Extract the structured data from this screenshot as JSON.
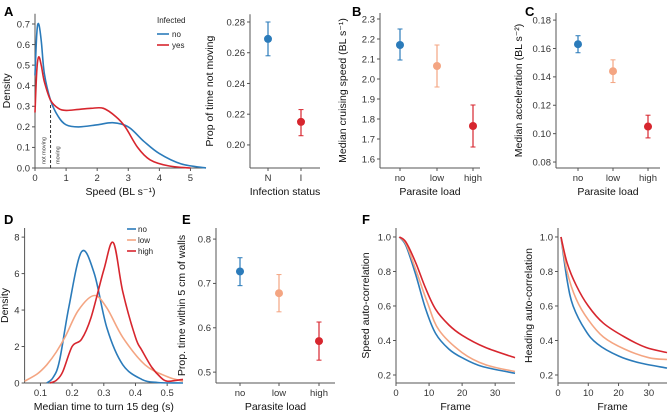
{
  "panel_labels": [
    "A",
    "B",
    "C",
    "D",
    "E",
    "F"
  ],
  "chart_data": [
    {
      "panel": "A",
      "type": "line",
      "kind": "density",
      "xlabel": "Speed (BL s⁻¹)",
      "ylabel": "Density",
      "xlim": [
        0,
        5.5
      ],
      "ylim": [
        0,
        0.75
      ],
      "xticks": [
        "0",
        "1",
        "2",
        "3",
        "4",
        "5"
      ],
      "yticks": [
        "0.0",
        "0.1",
        "0.2",
        "0.3",
        "0.4",
        "0.5",
        "0.6",
        "0.7"
      ],
      "legend": {
        "title": "Infected",
        "position": "top-right"
      },
      "threshold": {
        "x": 0.5,
        "left_label": "not moving",
        "right_label": "moving"
      },
      "series": [
        {
          "name": "no",
          "color": "#2b7bba",
          "x": [
            0,
            0.06,
            0.12,
            0.2,
            0.3,
            0.5,
            0.75,
            1,
            1.4,
            2,
            2.5,
            3,
            3.5,
            4,
            4.7,
            5.5
          ],
          "y": [
            0.45,
            0.66,
            0.7,
            0.62,
            0.46,
            0.33,
            0.25,
            0.21,
            0.2,
            0.21,
            0.22,
            0.2,
            0.13,
            0.07,
            0.02,
            0.0
          ]
        },
        {
          "name": "yes",
          "color": "#d7262e",
          "x": [
            0,
            0.06,
            0.12,
            0.2,
            0.3,
            0.5,
            0.75,
            1,
            1.4,
            1.8,
            2.2,
            2.6,
            2.9,
            3.3,
            3.7,
            4.3,
            5.0
          ],
          "y": [
            0.27,
            0.48,
            0.54,
            0.5,
            0.42,
            0.33,
            0.29,
            0.28,
            0.285,
            0.29,
            0.29,
            0.25,
            0.2,
            0.1,
            0.04,
            0.01,
            0.0
          ]
        }
      ]
    },
    {
      "panel": "",
      "type": "scatter",
      "kind": "errorbar",
      "xlabel": "Infection status",
      "ylabel": "Prop of time not moving",
      "categories": [
        "N",
        "I"
      ],
      "ylim": [
        0.185,
        0.285
      ],
      "yticks": [
        "0.20",
        "0.22",
        "0.24",
        "0.26",
        "0.28"
      ],
      "values": [
        0.269,
        0.215
      ],
      "ci_low": [
        0.258,
        0.206
      ],
      "ci_high": [
        0.28,
        0.223
      ],
      "colors": [
        "#2b7bba",
        "#d7262e"
      ]
    },
    {
      "panel": "B",
      "type": "scatter",
      "kind": "errorbar",
      "xlabel": "Parasite load",
      "ylabel": "Median cruising speed (BL s⁻¹)",
      "categories": [
        "no",
        "low",
        "high"
      ],
      "ylim": [
        1.555,
        2.33
      ],
      "yticks": [
        "1.6",
        "1.7",
        "1.8",
        "1.9",
        "2.0",
        "2.1",
        "2.2",
        "2.3"
      ],
      "values": [
        2.17,
        2.065,
        1.765
      ],
      "ci_low": [
        2.095,
        1.96,
        1.66
      ],
      "ci_high": [
        2.25,
        2.17,
        1.87
      ],
      "colors": [
        "#2b7bba",
        "#f4a582",
        "#d7262e"
      ]
    },
    {
      "panel": "C",
      "type": "scatter",
      "kind": "errorbar",
      "xlabel": "Parasite load",
      "ylabel": "Median acceleration (BL s⁻²)",
      "categories": [
        "no",
        "low",
        "high"
      ],
      "ylim": [
        0.0758,
        0.185
      ],
      "yticks": [
        "0.08",
        "0.10",
        "0.12",
        "0.14",
        "0.16",
        "0.18"
      ],
      "values": [
        0.163,
        0.144,
        0.105
      ],
      "ci_low": [
        0.157,
        0.136,
        0.097
      ],
      "ci_high": [
        0.169,
        0.152,
        0.113
      ],
      "colors": [
        "#2b7bba",
        "#f4a582",
        "#d7262e"
      ]
    },
    {
      "panel": "D",
      "type": "line",
      "kind": "density",
      "xlabel": "Median time to turn 15 deg (s)",
      "ylabel": "Density",
      "xlim": [
        0.05,
        0.55
      ],
      "ylim": [
        0,
        8.5
      ],
      "xticks": [
        "0.1",
        "0.2",
        "0.3",
        "0.4",
        "0.5"
      ],
      "yticks": [
        "0",
        "2",
        "4",
        "6",
        "8"
      ],
      "legend": {
        "title": "",
        "position": "top-right"
      },
      "series": [
        {
          "name": "no",
          "color": "#2b7bba",
          "x": [
            0.12,
            0.14,
            0.16,
            0.19,
            0.23,
            0.27,
            0.31,
            0.36,
            0.42,
            0.47,
            0.55
          ],
          "y": [
            0,
            0.3,
            1.2,
            4.2,
            7.2,
            6.0,
            3.0,
            1.0,
            0.2,
            0.03,
            0
          ]
        },
        {
          "name": "low",
          "color": "#f4a582",
          "x": [
            0.05,
            0.09,
            0.12,
            0.15,
            0.18,
            0.22,
            0.27,
            0.31,
            0.36,
            0.43,
            0.5,
            0.55
          ],
          "y": [
            0.1,
            0.5,
            1.0,
            1.7,
            2.6,
            4.0,
            4.8,
            4.1,
            2.5,
            1.0,
            0.35,
            0.1
          ]
        },
        {
          "name": "high",
          "color": "#d7262e",
          "x": [
            0.13,
            0.15,
            0.17,
            0.2,
            0.23,
            0.26,
            0.3,
            0.33,
            0.36,
            0.4,
            0.42,
            0.45,
            0.48,
            0.5,
            0.53,
            0.55
          ],
          "y": [
            0,
            0.15,
            0.6,
            2.0,
            2.4,
            3.6,
            6.2,
            7.7,
            5.0,
            2.5,
            1.8,
            0.9,
            0.3,
            0.1,
            0.15,
            0.2
          ]
        }
      ]
    },
    {
      "panel": "E",
      "type": "scatter",
      "kind": "errorbar",
      "xlabel": "Parasite load",
      "ylabel": "Prop. time within 5 cm of walls",
      "categories": [
        "no",
        "low",
        "high"
      ],
      "ylim": [
        0.4755,
        0.825
      ],
      "yticks": [
        "0.5",
        "0.6",
        "0.7",
        "0.8"
      ],
      "values": [
        0.727,
        0.678,
        0.57
      ],
      "ci_low": [
        0.695,
        0.636,
        0.527
      ],
      "ci_high": [
        0.758,
        0.72,
        0.613
      ],
      "colors": [
        "#2b7bba",
        "#f4a582",
        "#d7262e"
      ]
    },
    {
      "panel": "F",
      "type": "line",
      "xlabel": "Frame",
      "ylabel": "Speed auto-correlation",
      "xlim": [
        0,
        36
      ],
      "ylim": [
        0.1536,
        1.052
      ],
      "xticks": [
        "0",
        "10",
        "20",
        "30"
      ],
      "yticks": [
        "0.2",
        "0.4",
        "0.6",
        "0.8",
        "1.0"
      ],
      "series": [
        {
          "color": "#2b7bba",
          "x": [
            1,
            3,
            6,
            9,
            12,
            16,
            20,
            26,
            36
          ],
          "y": [
            1.0,
            0.95,
            0.78,
            0.58,
            0.44,
            0.35,
            0.3,
            0.25,
            0.21
          ]
        },
        {
          "color": "#f4a582",
          "x": [
            1,
            3,
            6,
            9.5,
            13,
            20,
            27,
            36
          ],
          "y": [
            1.0,
            0.96,
            0.81,
            0.62,
            0.46,
            0.33,
            0.26,
            0.22
          ]
        },
        {
          "color": "#d7262e",
          "x": [
            1,
            3,
            6,
            9,
            12,
            16,
            20,
            27,
            36
          ],
          "y": [
            1.0,
            0.97,
            0.85,
            0.7,
            0.58,
            0.49,
            0.43,
            0.36,
            0.3
          ]
        }
      ]
    },
    {
      "panel": "",
      "type": "line",
      "xlabel": "Frame",
      "ylabel": "Heading auto-correlation",
      "xlim": [
        0,
        36
      ],
      "ylim": [
        0.1536,
        1.052
      ],
      "xticks": [
        "0",
        "10",
        "20",
        "30"
      ],
      "yticks": [
        "0.2",
        "0.4",
        "0.6",
        "0.8",
        "1.0"
      ],
      "series": [
        {
          "color": "#2b7bba",
          "x": [
            1,
            3,
            5,
            9,
            13,
            20,
            27,
            36
          ],
          "y": [
            1.0,
            0.75,
            0.6,
            0.46,
            0.38,
            0.31,
            0.27,
            0.24
          ]
        },
        {
          "color": "#f4a582",
          "x": [
            1,
            3,
            6,
            10,
            15,
            22,
            30,
            36
          ],
          "y": [
            1.0,
            0.8,
            0.64,
            0.52,
            0.42,
            0.35,
            0.3,
            0.29
          ]
        },
        {
          "color": "#d7262e",
          "x": [
            1,
            3,
            6,
            10,
            15,
            22,
            29,
            36
          ],
          "y": [
            1.0,
            0.85,
            0.72,
            0.6,
            0.5,
            0.42,
            0.36,
            0.33
          ]
        }
      ]
    }
  ]
}
